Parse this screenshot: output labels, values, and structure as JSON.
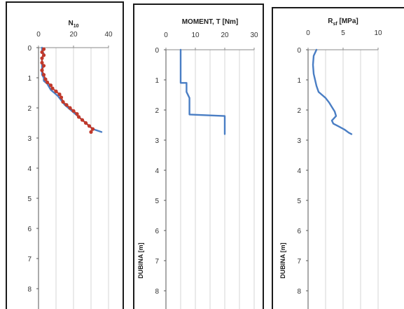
{
  "chart_data": [
    {
      "type": "line",
      "title": "N",
      "title_subscript": "10",
      "ylabel": "",
      "xlim": [
        0,
        40
      ],
      "ylim": [
        0,
        8.5
      ],
      "x_ticks": [
        "0",
        "20",
        "40"
      ],
      "y_ticks": [
        "0",
        "1",
        "2",
        "3",
        "4",
        "5",
        "6",
        "7",
        "8"
      ],
      "y_reversed": true,
      "grid": "vertical",
      "series": [
        {
          "color": "#4a7ec4",
          "x": [
            2,
            2,
            3,
            2,
            2,
            2,
            2,
            3,
            3,
            5,
            6,
            7,
            9,
            11,
            13,
            15,
            17,
            19,
            21,
            23,
            25,
            27,
            29,
            31,
            36
          ],
          "y": [
            0,
            0.1,
            0.2,
            0.35,
            0.5,
            0.7,
            0.9,
            1.0,
            1.1,
            1.2,
            1.3,
            1.4,
            1.5,
            1.6,
            1.75,
            1.9,
            2.0,
            2.1,
            2.2,
            2.3,
            2.4,
            2.5,
            2.6,
            2.7,
            2.8
          ]
        },
        {
          "color": "#c0392b",
          "marker": "dot",
          "x": [
            3,
            2,
            3,
            2,
            2,
            3,
            2,
            3,
            4,
            5,
            7,
            8,
            10,
            12,
            13,
            14,
            16,
            18,
            20,
            22,
            23,
            25,
            27,
            29,
            31,
            30
          ],
          "y": [
            0.05,
            0.15,
            0.25,
            0.35,
            0.5,
            0.6,
            0.75,
            0.9,
            1.05,
            1.15,
            1.25,
            1.35,
            1.45,
            1.55,
            1.65,
            1.8,
            1.9,
            2.0,
            2.1,
            2.2,
            2.3,
            2.4,
            2.5,
            2.6,
            2.7,
            2.8
          ]
        }
      ]
    },
    {
      "type": "line",
      "title": "MOMENT, T  [Nm]",
      "ylabel": "DUBINA [m]",
      "xlim": [
        0,
        30
      ],
      "ylim": [
        0,
        8.5
      ],
      "x_ticks": [
        "0",
        "10",
        "20",
        "30"
      ],
      "y_ticks": [
        "0",
        "1",
        "2",
        "3",
        "4",
        "5",
        "6",
        "7",
        "8"
      ],
      "y_reversed": true,
      "grid": "vertical",
      "series": [
        {
          "color": "#4a7ec4",
          "x": [
            5,
            5,
            5,
            7,
            7,
            8,
            8,
            20,
            20,
            20
          ],
          "y": [
            0,
            0.5,
            1.1,
            1.1,
            1.4,
            1.6,
            2.15,
            2.2,
            2.5,
            2.8
          ]
        }
      ]
    },
    {
      "type": "line",
      "title": "R",
      "title_subscript": "sf",
      "title_suffix": "  [MPa]",
      "ylabel": "DUBINA [m]",
      "xlim": [
        0,
        10
      ],
      "ylim": [
        0,
        8.5
      ],
      "x_ticks": [
        "0",
        "5",
        "10"
      ],
      "y_ticks": [
        "0",
        "1",
        "2",
        "3",
        "4",
        "5",
        "6",
        "7",
        "8"
      ],
      "y_reversed": true,
      "grid": "vertical",
      "series": [
        {
          "color": "#4a7ec4",
          "x": [
            1.2,
            0.8,
            0.7,
            0.8,
            1.0,
            1.2,
            1.5,
            2.0,
            2.5,
            3.0,
            3.4,
            3.8,
            4.0,
            3.4,
            3.6,
            4.4,
            5.2,
            5.8,
            6.2
          ],
          "y": [
            0,
            0.2,
            0.5,
            0.8,
            1.0,
            1.2,
            1.4,
            1.5,
            1.6,
            1.75,
            1.9,
            2.05,
            2.2,
            2.35,
            2.45,
            2.55,
            2.65,
            2.75,
            2.8
          ]
        }
      ]
    }
  ]
}
